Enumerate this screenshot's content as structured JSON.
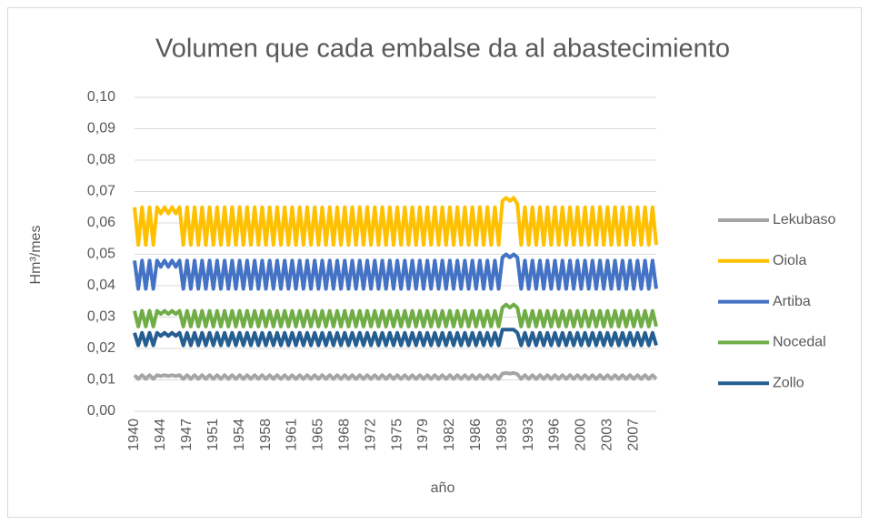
{
  "chart_data": {
    "type": "line",
    "title": "Volumen que cada embalse da al abastecimiento",
    "x_label": "año",
    "y_label": "Hm³/mes",
    "ylim": [
      0,
      0.1
    ],
    "yticks": [
      {
        "value": 0,
        "label": "0,00"
      },
      {
        "value": 0.01,
        "label": "0,01"
      },
      {
        "value": 0.02,
        "label": "0,02"
      },
      {
        "value": 0.03,
        "label": "0,03"
      },
      {
        "value": 0.04,
        "label": "0,04"
      },
      {
        "value": 0.05,
        "label": "0,05"
      },
      {
        "value": 0.06,
        "label": "0,06"
      },
      {
        "value": 0.07,
        "label": "0,07"
      },
      {
        "value": 0.08,
        "label": "0,08"
      },
      {
        "value": 0.09,
        "label": "0,09"
      },
      {
        "value": 0.1,
        "label": "0,10"
      }
    ],
    "grid": true,
    "legend": "right",
    "categories": [
      "1940",
      null,
      null,
      null,
      null,
      null,
      null,
      "1944",
      null,
      null,
      null,
      null,
      null,
      null,
      "1947",
      null,
      null,
      null,
      null,
      null,
      null,
      "1951",
      null,
      null,
      null,
      null,
      null,
      null,
      "1954",
      null,
      null,
      null,
      null,
      null,
      null,
      "1958",
      null,
      null,
      null,
      null,
      null,
      null,
      "1961",
      null,
      null,
      null,
      null,
      null,
      null,
      "1965",
      null,
      null,
      null,
      null,
      null,
      null,
      "1968",
      null,
      null,
      null,
      null,
      null,
      null,
      "1972",
      null,
      null,
      null,
      null,
      null,
      null,
      "1975",
      null,
      null,
      null,
      null,
      null,
      null,
      "1979",
      null,
      null,
      null,
      null,
      null,
      null,
      "1982",
      null,
      null,
      null,
      null,
      null,
      null,
      "1986",
      null,
      null,
      null,
      null,
      null,
      null,
      "1989",
      null,
      null,
      null,
      null,
      null,
      null,
      "1993",
      null,
      null,
      null,
      null,
      null,
      null,
      "1996",
      null,
      null,
      null,
      null,
      null,
      null,
      "2000",
      null,
      null,
      null,
      null,
      null,
      null,
      "2003",
      null,
      null,
      null,
      null,
      null,
      null,
      "2007",
      null,
      null,
      null,
      null,
      null,
      null
    ],
    "series": [
      {
        "name": "Lekubaso",
        "color": "#a5a5a5",
        "values": [
          0.0115,
          0.0103,
          0.0115,
          0.0103,
          0.0115,
          0.0103,
          0.0115,
          0.0112,
          0.0115,
          0.0112,
          0.0115,
          0.0112,
          0.0115,
          0.0103,
          0.0115,
          0.0103,
          0.0115,
          0.0103,
          0.0115,
          0.0103,
          0.0115,
          0.0103,
          0.0115,
          0.0103,
          0.0115,
          0.0103,
          0.0115,
          0.0103,
          0.0115,
          0.0103,
          0.0115,
          0.0103,
          0.0115,
          0.0103,
          0.0115,
          0.0103,
          0.0115,
          0.0103,
          0.0115,
          0.0103,
          0.0115,
          0.0103,
          0.0115,
          0.0103,
          0.0115,
          0.0103,
          0.0115,
          0.0103,
          0.0115,
          0.0103,
          0.0115,
          0.0103,
          0.0115,
          0.0103,
          0.0115,
          0.0103,
          0.0115,
          0.0103,
          0.0115,
          0.0103,
          0.0115,
          0.0103,
          0.0115,
          0.0103,
          0.0115,
          0.0103,
          0.0115,
          0.0103,
          0.0115,
          0.0103,
          0.0115,
          0.0103,
          0.0115,
          0.0103,
          0.0115,
          0.0103,
          0.0115,
          0.0103,
          0.0115,
          0.0103,
          0.0115,
          0.0103,
          0.0115,
          0.0103,
          0.0115,
          0.0103,
          0.0115,
          0.0103,
          0.0115,
          0.0103,
          0.0115,
          0.0103,
          0.0115,
          0.0103,
          0.0115,
          0.0103,
          0.0115,
          0.0103,
          0.012,
          0.0122,
          0.012,
          0.0122,
          0.0118,
          0.0103,
          0.0115,
          0.0103,
          0.0115,
          0.0103,
          0.0115,
          0.0103,
          0.0115,
          0.0103,
          0.0115,
          0.0103,
          0.0115,
          0.0103,
          0.0115,
          0.0103,
          0.0115,
          0.0103,
          0.0115,
          0.0103,
          0.0115,
          0.0103,
          0.0115,
          0.0103,
          0.0115,
          0.0103,
          0.0115,
          0.0103,
          0.0115,
          0.0103,
          0.0115,
          0.0103,
          0.0115,
          0.0103,
          0.0115,
          0.0103,
          0.0115,
          0.0103
        ]
      },
      {
        "name": "Oiola",
        "color": "#ffc000",
        "values": [
          0.065,
          0.053,
          0.065,
          0.053,
          0.065,
          0.053,
          0.065,
          0.063,
          0.065,
          0.063,
          0.065,
          0.063,
          0.065,
          0.053,
          0.065,
          0.053,
          0.065,
          0.053,
          0.065,
          0.053,
          0.065,
          0.053,
          0.065,
          0.053,
          0.065,
          0.053,
          0.065,
          0.053,
          0.065,
          0.053,
          0.065,
          0.053,
          0.065,
          0.053,
          0.065,
          0.053,
          0.065,
          0.053,
          0.065,
          0.053,
          0.065,
          0.053,
          0.065,
          0.053,
          0.065,
          0.053,
          0.065,
          0.053,
          0.065,
          0.053,
          0.065,
          0.053,
          0.065,
          0.053,
          0.065,
          0.053,
          0.065,
          0.053,
          0.065,
          0.053,
          0.065,
          0.053,
          0.065,
          0.053,
          0.065,
          0.053,
          0.065,
          0.053,
          0.065,
          0.053,
          0.065,
          0.053,
          0.065,
          0.053,
          0.065,
          0.053,
          0.065,
          0.053,
          0.065,
          0.053,
          0.065,
          0.053,
          0.065,
          0.053,
          0.065,
          0.053,
          0.065,
          0.053,
          0.065,
          0.053,
          0.065,
          0.053,
          0.065,
          0.053,
          0.065,
          0.053,
          0.065,
          0.053,
          0.067,
          0.068,
          0.067,
          0.068,
          0.066,
          0.053,
          0.065,
          0.053,
          0.065,
          0.053,
          0.065,
          0.053,
          0.065,
          0.053,
          0.065,
          0.053,
          0.065,
          0.053,
          0.065,
          0.053,
          0.065,
          0.053,
          0.065,
          0.053,
          0.065,
          0.053,
          0.065,
          0.053,
          0.065,
          0.053,
          0.065,
          0.053,
          0.065,
          0.053,
          0.065,
          0.053,
          0.065,
          0.053,
          0.065,
          0.053,
          0.065,
          0.053
        ]
      },
      {
        "name": "Artiba",
        "color": "#4472c4",
        "values": [
          0.048,
          0.039,
          0.048,
          0.039,
          0.048,
          0.039,
          0.048,
          0.046,
          0.048,
          0.046,
          0.048,
          0.046,
          0.048,
          0.039,
          0.048,
          0.039,
          0.048,
          0.039,
          0.048,
          0.039,
          0.048,
          0.039,
          0.048,
          0.039,
          0.048,
          0.039,
          0.048,
          0.039,
          0.048,
          0.039,
          0.048,
          0.039,
          0.048,
          0.039,
          0.048,
          0.039,
          0.048,
          0.039,
          0.048,
          0.039,
          0.048,
          0.039,
          0.048,
          0.039,
          0.048,
          0.039,
          0.048,
          0.039,
          0.048,
          0.039,
          0.048,
          0.039,
          0.048,
          0.039,
          0.048,
          0.039,
          0.048,
          0.039,
          0.048,
          0.039,
          0.048,
          0.039,
          0.048,
          0.039,
          0.048,
          0.039,
          0.048,
          0.039,
          0.048,
          0.039,
          0.048,
          0.039,
          0.048,
          0.039,
          0.048,
          0.039,
          0.048,
          0.039,
          0.048,
          0.039,
          0.048,
          0.039,
          0.048,
          0.039,
          0.048,
          0.039,
          0.048,
          0.039,
          0.048,
          0.039,
          0.048,
          0.039,
          0.048,
          0.039,
          0.048,
          0.039,
          0.048,
          0.039,
          0.049,
          0.05,
          0.049,
          0.05,
          0.049,
          0.039,
          0.048,
          0.039,
          0.048,
          0.039,
          0.048,
          0.039,
          0.048,
          0.039,
          0.048,
          0.039,
          0.048,
          0.039,
          0.048,
          0.039,
          0.048,
          0.039,
          0.048,
          0.039,
          0.048,
          0.039,
          0.048,
          0.039,
          0.048,
          0.039,
          0.048,
          0.039,
          0.048,
          0.039,
          0.048,
          0.039,
          0.048,
          0.039,
          0.048,
          0.039,
          0.048,
          0.039
        ]
      },
      {
        "name": "Nocedal",
        "color": "#70ad47",
        "values": [
          0.032,
          0.027,
          0.032,
          0.027,
          0.032,
          0.027,
          0.032,
          0.031,
          0.032,
          0.031,
          0.032,
          0.031,
          0.032,
          0.027,
          0.032,
          0.027,
          0.032,
          0.027,
          0.032,
          0.027,
          0.032,
          0.027,
          0.032,
          0.027,
          0.032,
          0.027,
          0.032,
          0.027,
          0.032,
          0.027,
          0.032,
          0.027,
          0.032,
          0.027,
          0.032,
          0.027,
          0.032,
          0.027,
          0.032,
          0.027,
          0.032,
          0.027,
          0.032,
          0.027,
          0.032,
          0.027,
          0.032,
          0.027,
          0.032,
          0.027,
          0.032,
          0.027,
          0.032,
          0.027,
          0.032,
          0.027,
          0.032,
          0.027,
          0.032,
          0.027,
          0.032,
          0.027,
          0.032,
          0.027,
          0.032,
          0.027,
          0.032,
          0.027,
          0.032,
          0.027,
          0.032,
          0.027,
          0.032,
          0.027,
          0.032,
          0.027,
          0.032,
          0.027,
          0.032,
          0.027,
          0.032,
          0.027,
          0.032,
          0.027,
          0.032,
          0.027,
          0.032,
          0.027,
          0.032,
          0.027,
          0.032,
          0.027,
          0.032,
          0.027,
          0.032,
          0.027,
          0.032,
          0.027,
          0.033,
          0.034,
          0.033,
          0.034,
          0.033,
          0.027,
          0.032,
          0.027,
          0.032,
          0.027,
          0.032,
          0.027,
          0.032,
          0.027,
          0.032,
          0.027,
          0.032,
          0.027,
          0.032,
          0.027,
          0.032,
          0.027,
          0.032,
          0.027,
          0.032,
          0.027,
          0.032,
          0.027,
          0.032,
          0.027,
          0.032,
          0.027,
          0.032,
          0.027,
          0.032,
          0.027,
          0.032,
          0.027,
          0.032,
          0.027,
          0.032,
          0.027
        ]
      },
      {
        "name": "Zollo",
        "color": "#255e91",
        "values": [
          0.025,
          0.021,
          0.025,
          0.021,
          0.025,
          0.021,
          0.025,
          0.024,
          0.025,
          0.024,
          0.025,
          0.024,
          0.025,
          0.021,
          0.025,
          0.021,
          0.025,
          0.021,
          0.025,
          0.021,
          0.025,
          0.021,
          0.025,
          0.021,
          0.025,
          0.021,
          0.025,
          0.021,
          0.025,
          0.021,
          0.025,
          0.021,
          0.025,
          0.021,
          0.025,
          0.021,
          0.025,
          0.021,
          0.025,
          0.021,
          0.025,
          0.021,
          0.025,
          0.021,
          0.025,
          0.021,
          0.025,
          0.021,
          0.025,
          0.021,
          0.025,
          0.021,
          0.025,
          0.021,
          0.025,
          0.021,
          0.025,
          0.021,
          0.025,
          0.021,
          0.025,
          0.021,
          0.025,
          0.021,
          0.025,
          0.021,
          0.025,
          0.021,
          0.025,
          0.021,
          0.025,
          0.021,
          0.025,
          0.021,
          0.025,
          0.021,
          0.025,
          0.021,
          0.025,
          0.021,
          0.025,
          0.021,
          0.025,
          0.021,
          0.025,
          0.021,
          0.025,
          0.021,
          0.025,
          0.021,
          0.025,
          0.021,
          0.025,
          0.021,
          0.025,
          0.021,
          0.025,
          0.021,
          0.026,
          0.026,
          0.026,
          0.026,
          0.025,
          0.021,
          0.025,
          0.021,
          0.025,
          0.021,
          0.025,
          0.021,
          0.025,
          0.021,
          0.025,
          0.021,
          0.025,
          0.021,
          0.025,
          0.021,
          0.025,
          0.021,
          0.025,
          0.021,
          0.025,
          0.021,
          0.025,
          0.021,
          0.025,
          0.021,
          0.025,
          0.021,
          0.025,
          0.021,
          0.025,
          0.021,
          0.025,
          0.021,
          0.025,
          0.021,
          0.025,
          0.021
        ]
      }
    ]
  }
}
